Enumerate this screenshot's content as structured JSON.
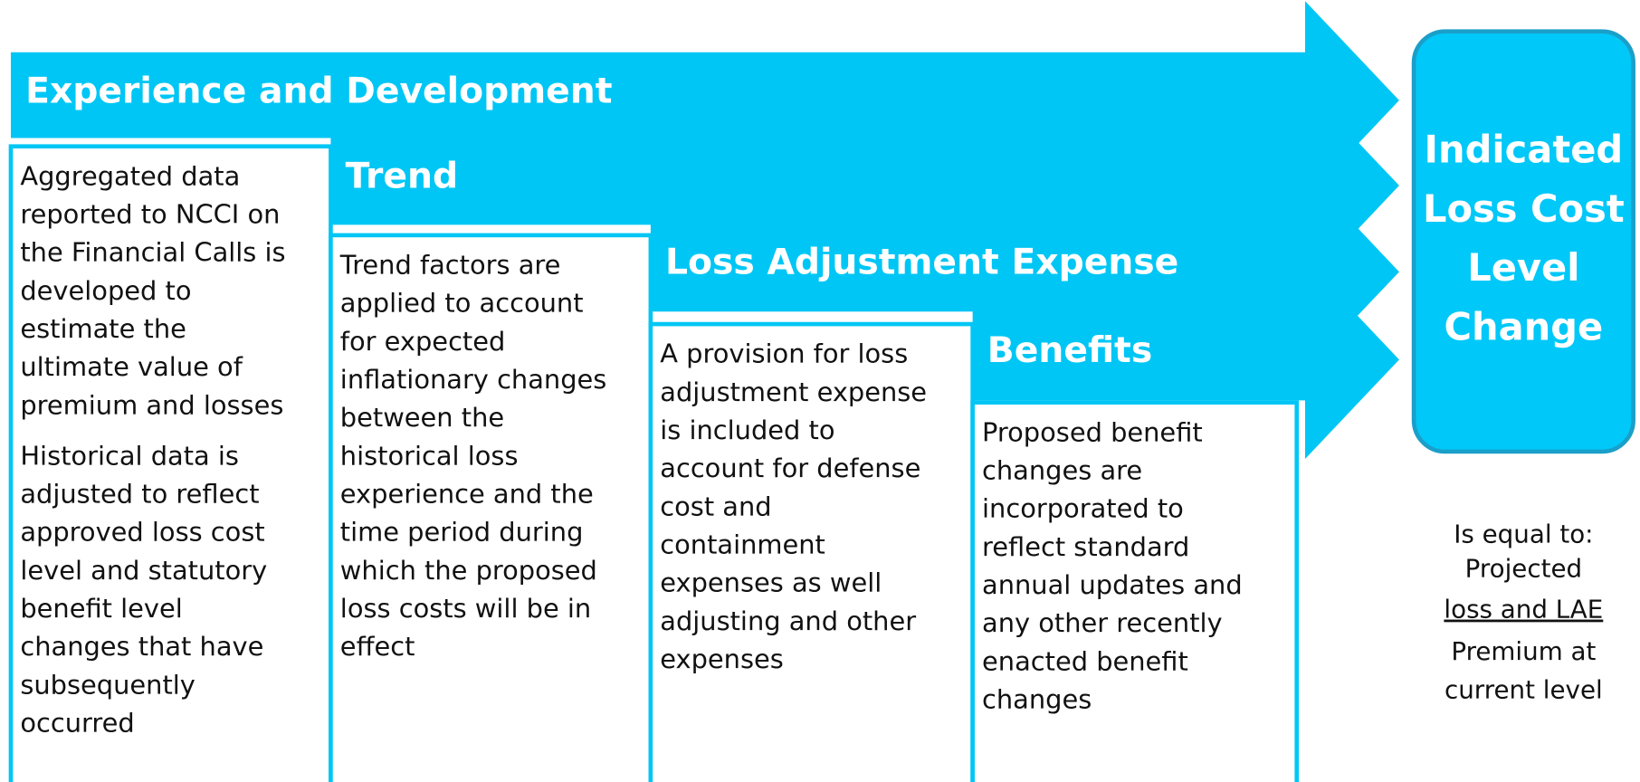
{
  "stages": [
    {
      "title": "Experience and Development",
      "paragraphs": [
        [
          "Aggregated data",
          "reported to NCCI on",
          "the Financial Calls is",
          "developed to",
          "estimate the",
          "ultimate value of",
          "premium and losses"
        ],
        [
          "Historical data is",
          "adjusted to reflect",
          "approved loss cost",
          "level and statutory",
          "benefit level",
          "changes that have",
          "subsequently",
          "occurred"
        ]
      ]
    },
    {
      "title": "Trend",
      "paragraphs": [
        [
          "Trend factors are",
          "applied to account",
          "for expected",
          "inflationary changes",
          "between the",
          "historical loss",
          "experience and the",
          "time period during",
          "which the proposed",
          "loss costs will be in",
          "effect"
        ]
      ]
    },
    {
      "title": "Loss Adjustment Expense",
      "paragraphs": [
        [
          "A provision for loss",
          "adjustment expense",
          "is included to",
          "account for defense",
          "cost and",
          "containment",
          "expenses as well",
          "adjusting and other",
          "expenses"
        ]
      ]
    },
    {
      "title": "Benefits",
      "paragraphs": [
        [
          "Proposed benefit",
          "changes are",
          "incorporated to",
          "reflect standard",
          "annual updates and",
          "any other recently",
          "enacted benefit",
          "changes"
        ]
      ]
    }
  ],
  "result": {
    "title": [
      "Indicated",
      "Loss Cost",
      "Level",
      "Change"
    ],
    "note": "Is equal to:",
    "formula": {
      "numerator": [
        "Projected",
        "loss and LAE"
      ],
      "denominator": [
        "Premium at",
        "current level"
      ]
    }
  }
}
